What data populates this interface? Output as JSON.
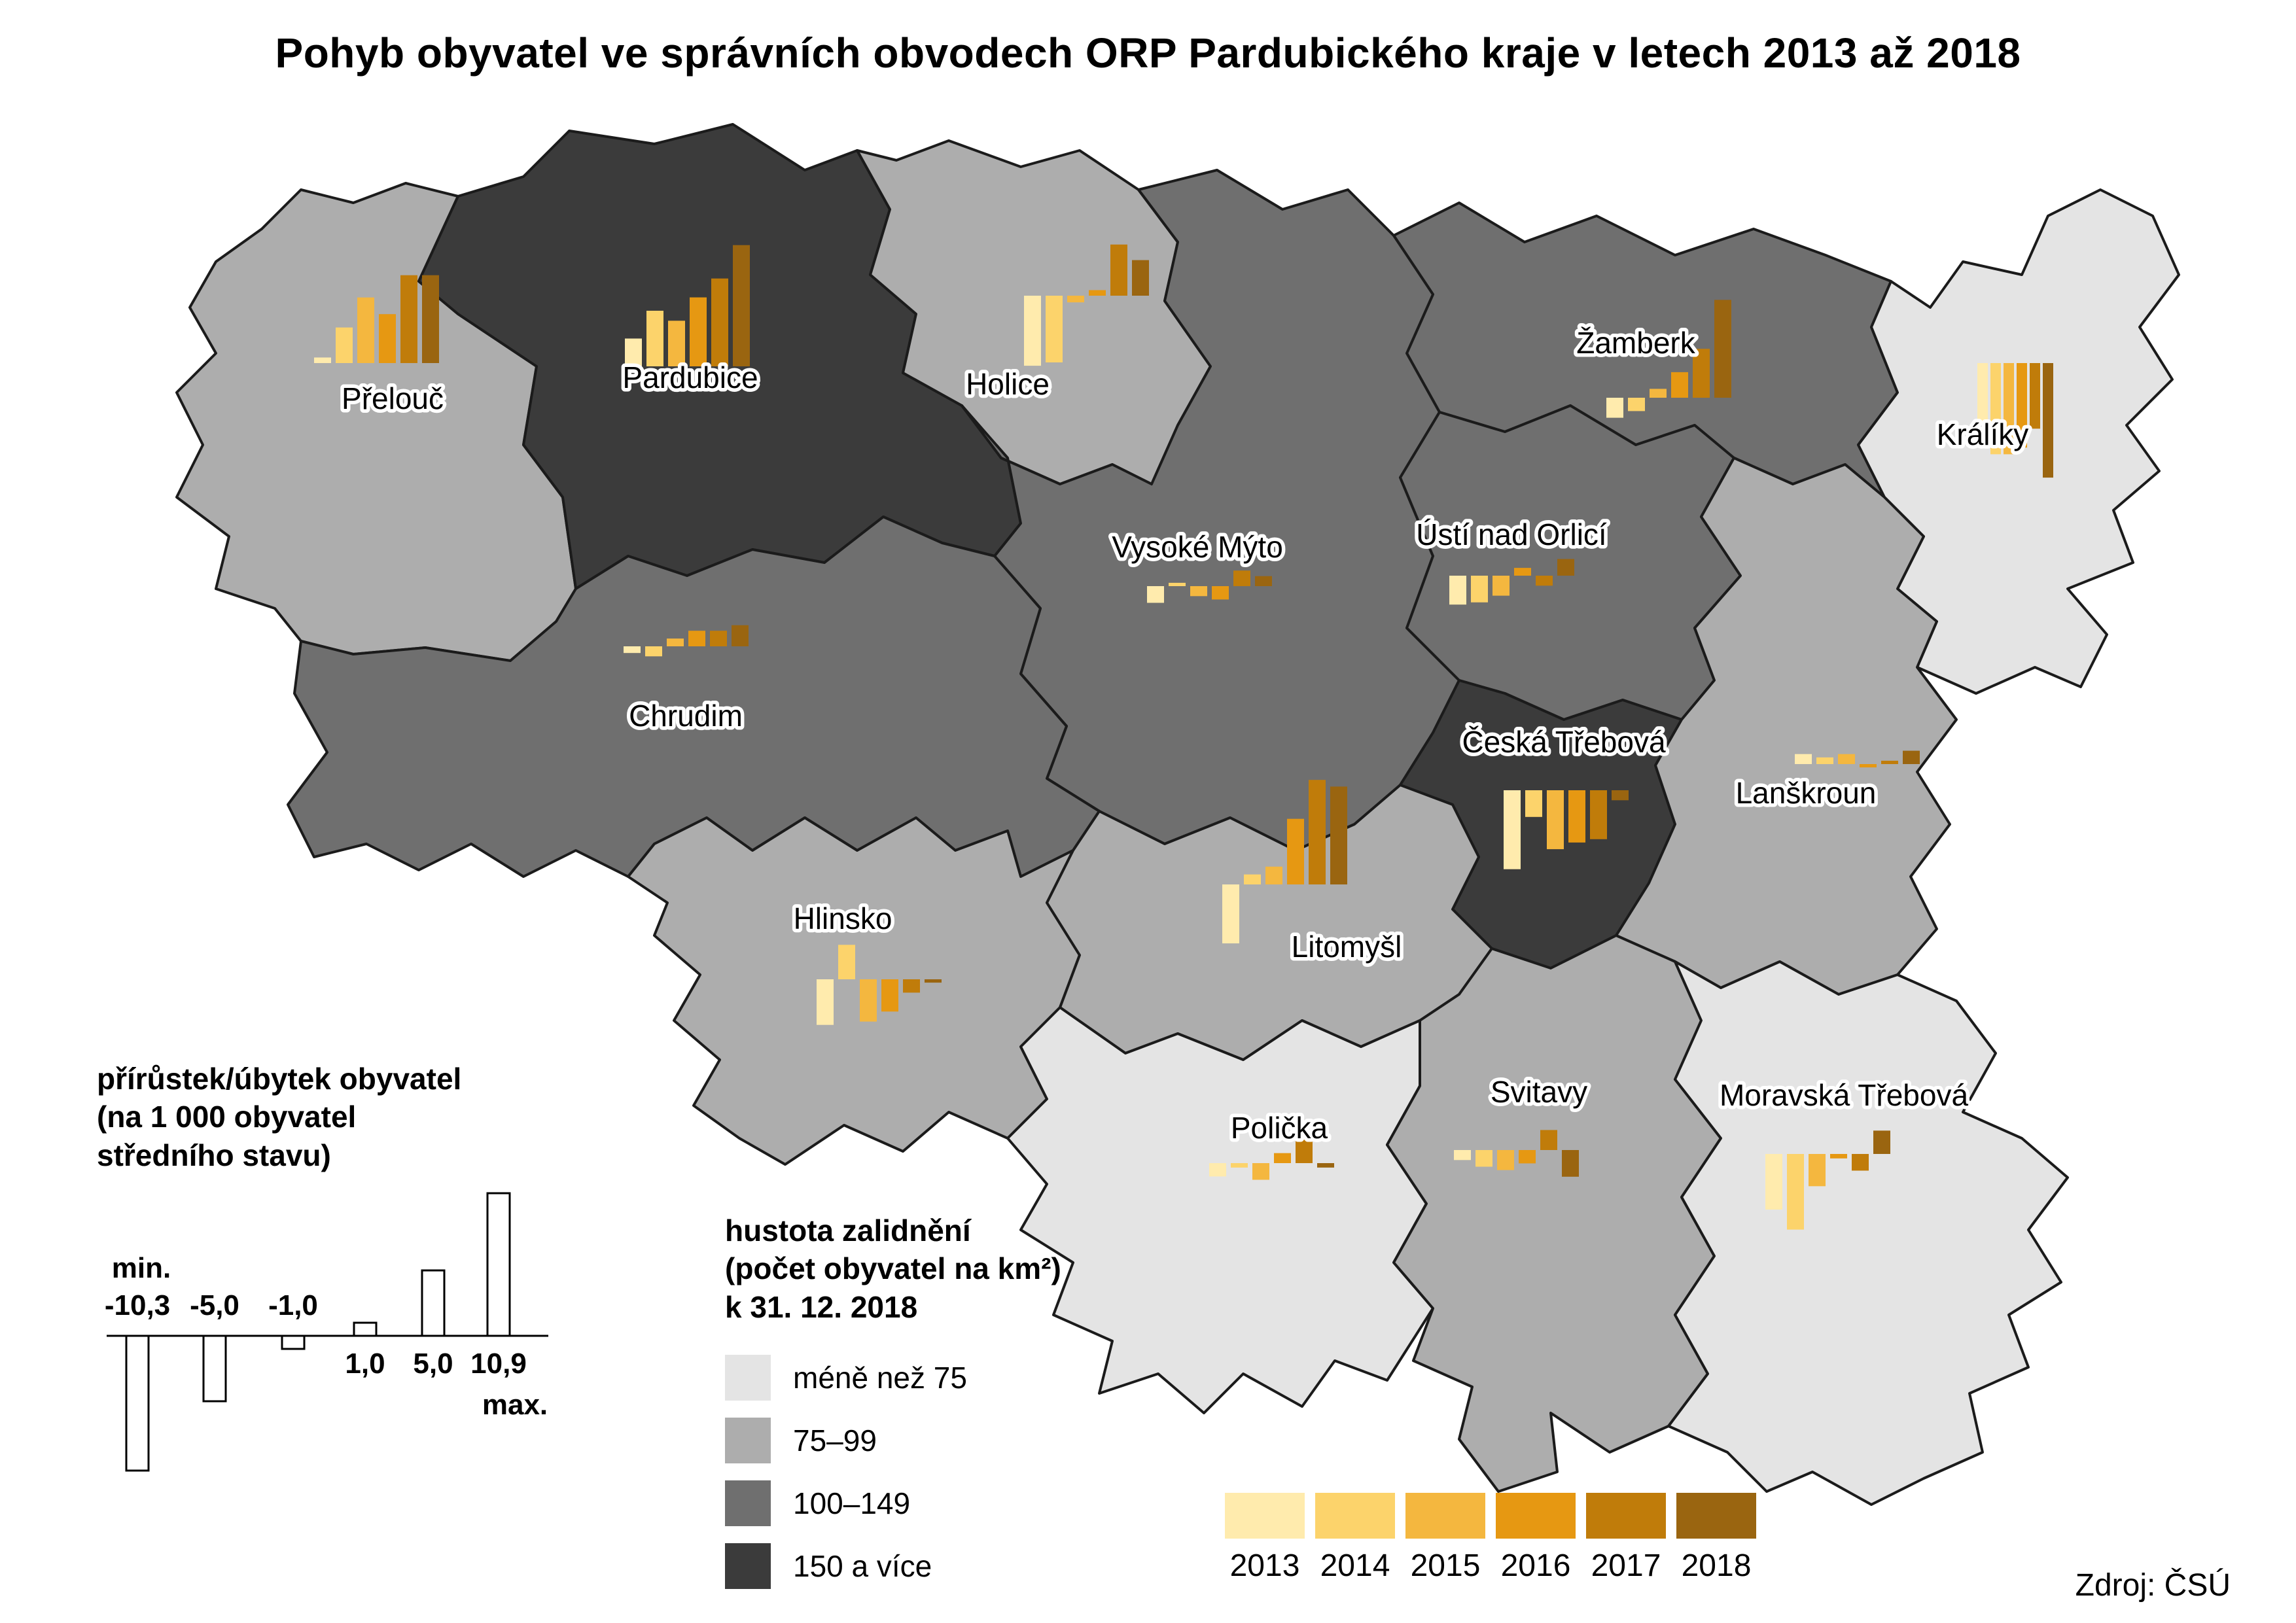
{
  "title": "Pohyb obyvatel ve správních obvodech ORP Pardubického kraje v letech 2013 až 2018",
  "source": "Zdroj: ČSÚ",
  "years": [
    "2013",
    "2014",
    "2015",
    "2016",
    "2017",
    "2018"
  ],
  "year_colors": [
    "#FFEBAD",
    "#FCD36B",
    "#F4B73F",
    "#E69812",
    "#C07C0A",
    "#9A6510"
  ],
  "rate_legend": {
    "title_line1": "přírůstek/úbytek obyvatel",
    "title_line2": "(na 1 000 obyvatel",
    "title_line3": "středního stavu)",
    "min_label": "min.",
    "max_label": "max.",
    "ticks": [
      {
        "label": "-10,3",
        "value": -10.3
      },
      {
        "label": "-5,0",
        "value": -5
      },
      {
        "label": "-1,0",
        "value": -1
      },
      {
        "label": "1,0",
        "value": 1
      },
      {
        "label": "5,0",
        "value": 5
      },
      {
        "label": "10,9",
        "value": 10.9
      }
    ]
  },
  "density_legend": {
    "title_line1": "hustota zalidnění",
    "title_line2": "(počet obyvatel na km²)",
    "title_line3": "k 31. 12. 2018",
    "classes": [
      {
        "label": "méně než 75",
        "color": "#E4E4E4"
      },
      {
        "label": "75–99",
        "color": "#ADADAD"
      },
      {
        "label": "100–149",
        "color": "#6F6F6F"
      },
      {
        "label": "150 a více",
        "color": "#3B3B3B"
      }
    ]
  },
  "districts": [
    {
      "id": "prelouc",
      "name": "Přelouč",
      "density": "75–99",
      "values": [
        0.5,
        3.2,
        5.9,
        4.4,
        7.9,
        7.9
      ]
    },
    {
      "id": "pardubice",
      "name": "Pardubice",
      "density": "150 a více",
      "values": [
        2.5,
        5.0,
        4.1,
        6.2,
        7.9,
        10.9
      ]
    },
    {
      "id": "holice",
      "name": "Holice",
      "density": "75–99",
      "values": [
        -6.3,
        -6.0,
        -0.6,
        0.5,
        4.6,
        3.2
      ]
    },
    {
      "id": "zamberk",
      "name": "Žamberk",
      "density": "100–149",
      "values": [
        -1.8,
        -1.2,
        0.8,
        2.3,
        4.4,
        8.8
      ]
    },
    {
      "id": "kraliky",
      "name": "Králíky",
      "density": "méně než 75",
      "values": [
        -5.3,
        -8.2,
        -8.2,
        -7.6,
        -5.9,
        -10.3
      ]
    },
    {
      "id": "vysoke-myto",
      "name": "Vysoké Mýto",
      "density": "100–149",
      "values": [
        -1.5,
        0.3,
        -0.9,
        -1.2,
        1.4,
        0.9
      ]
    },
    {
      "id": "usti-nad-orlici",
      "name": "Ústí nad Orlicí",
      "density": "100–149",
      "values": [
        -2.6,
        -2.4,
        -1.8,
        0.7,
        -0.9,
        1.5
      ]
    },
    {
      "id": "chrudim",
      "name": "Chrudim",
      "density": "100–149",
      "values": [
        -0.6,
        -0.9,
        0.7,
        1.4,
        1.4,
        1.9
      ]
    },
    {
      "id": "ceska-trebova",
      "name": "Česká Třebová",
      "density": "150 a více",
      "values": [
        -7.1,
        -2.4,
        -5.3,
        -4.7,
        -4.4,
        -0.9
      ]
    },
    {
      "id": "lanskroun",
      "name": "Lanškroun",
      "density": "75–99",
      "values": [
        0.9,
        0.6,
        0.9,
        -0.3,
        0.3,
        1.2
      ]
    },
    {
      "id": "hlinsko",
      "name": "Hlinsko",
      "density": "75–99",
      "values": [
        -4.1,
        3.1,
        -3.8,
        -2.9,
        -1.2,
        -0.3
      ]
    },
    {
      "id": "litomysl",
      "name": "Litomyšl",
      "density": "75–99",
      "values": [
        -5.3,
        0.9,
        1.6,
        5.9,
        9.4,
        8.8
      ]
    },
    {
      "id": "policka",
      "name": "Polička",
      "density": "méně než 75",
      "values": [
        -1.2,
        -0.4,
        -1.5,
        0.9,
        2.1,
        -0.4
      ]
    },
    {
      "id": "svitavy",
      "name": "Svitavy",
      "density": "75–99",
      "values": [
        -0.9,
        -1.5,
        -1.8,
        -1.2,
        1.8,
        -2.4
      ]
    },
    {
      "id": "moravska-trebova",
      "name": "Moravská Třebová",
      "density": "méně než 75",
      "values": [
        -5.0,
        -6.8,
        -2.9,
        -0.4,
        -1.5,
        2.1
      ]
    }
  ],
  "chart_data": {
    "type": "bar",
    "title": "Pohyb obyvatel ve správních obvodech ORP Pardubického kraje v letech 2013 až 2018",
    "categories": [
      "2013",
      "2014",
      "2015",
      "2016",
      "2017",
      "2018"
    ],
    "ylabel": "přírůstek/úbytek obyvatel (na 1 000 obyvatel středního stavu)",
    "ylim": [
      -10.3,
      10.9
    ],
    "legend_position": "bottom",
    "series": [
      {
        "name": "Přelouč",
        "values": [
          0.5,
          3.2,
          5.9,
          4.4,
          7.9,
          7.9
        ]
      },
      {
        "name": "Pardubice",
        "values": [
          2.5,
          5.0,
          4.1,
          6.2,
          7.9,
          10.9
        ]
      },
      {
        "name": "Holice",
        "values": [
          -6.3,
          -6.0,
          -0.6,
          0.5,
          4.6,
          3.2
        ]
      },
      {
        "name": "Žamberk",
        "values": [
          -1.8,
          -1.2,
          0.8,
          2.3,
          4.4,
          8.8
        ]
      },
      {
        "name": "Králíky",
        "values": [
          -5.3,
          -8.2,
          -8.2,
          -7.6,
          -5.9,
          -10.3
        ]
      },
      {
        "name": "Vysoké Mýto",
        "values": [
          -1.5,
          0.3,
          -0.9,
          -1.2,
          1.4,
          0.9
        ]
      },
      {
        "name": "Ústí nad Orlicí",
        "values": [
          -2.6,
          -2.4,
          -1.8,
          0.7,
          -0.9,
          1.5
        ]
      },
      {
        "name": "Chrudim",
        "values": [
          -0.6,
          -0.9,
          0.7,
          1.4,
          1.4,
          1.9
        ]
      },
      {
        "name": "Česká Třebová",
        "values": [
          -7.1,
          -2.4,
          -5.3,
          -4.7,
          -4.4,
          -0.9
        ]
      },
      {
        "name": "Lanškroun",
        "values": [
          0.9,
          0.6,
          0.9,
          -0.3,
          0.3,
          1.2
        ]
      },
      {
        "name": "Hlinsko",
        "values": [
          -4.1,
          3.1,
          -3.8,
          -2.9,
          -1.2,
          -0.3
        ]
      },
      {
        "name": "Litomyšl",
        "values": [
          -5.3,
          0.9,
          1.6,
          5.9,
          9.4,
          8.8
        ]
      },
      {
        "name": "Polička",
        "values": [
          -1.2,
          -0.4,
          -1.5,
          0.9,
          2.1,
          -0.4
        ]
      },
      {
        "name": "Svitavy",
        "values": [
          -0.9,
          -1.5,
          -1.8,
          -1.2,
          1.8,
          -2.4
        ]
      },
      {
        "name": "Moravská Třebová",
        "values": [
          -5.0,
          -6.8,
          -2.9,
          -0.4,
          -1.5,
          2.1
        ]
      }
    ]
  }
}
